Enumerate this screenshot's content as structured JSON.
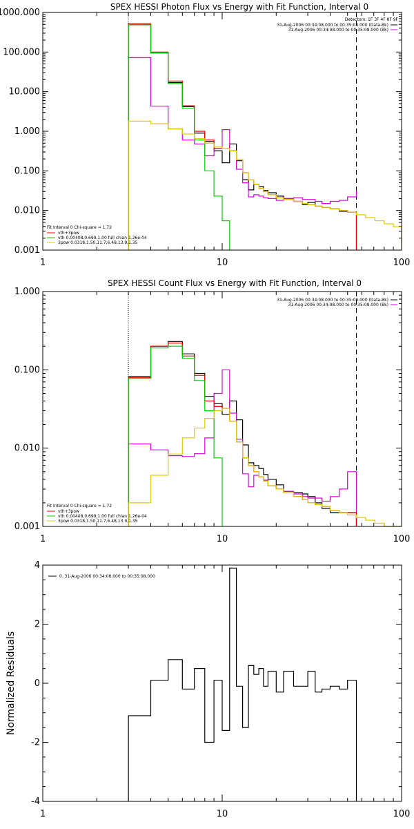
{
  "chart_data": [
    {
      "type": "line",
      "title": "SPEX HESSI Photon Flux vs Energy with Fit Function, Interval 0",
      "xscale": "log",
      "yscale": "log",
      "xlim": [
        1,
        100
      ],
      "ylim": [
        0.001,
        1000
      ],
      "xticklabels": [
        "1",
        "10",
        "100"
      ],
      "yticks": [
        0.001,
        0.01,
        0.1,
        1,
        10,
        100,
        1000
      ],
      "yticklabels": [
        "0.001",
        "0.010",
        "0.100",
        "1.000",
        "10.000",
        "100.000",
        "1000.000"
      ],
      "vlines": [
        {
          "x": 3,
          "style": "dotted"
        },
        {
          "x": 56,
          "style": "dashed"
        }
      ],
      "legend_tr": [
        "Detectors: 1F 3F 4F 8F 9F",
        "31-Aug-2006 00:34:08.000 to 00:35:08.000 (Data-Bk)",
        "31-Aug-2006 00:34:08.000 to 00:35:08.000 (Bk)"
      ],
      "legend_bl": [
        "Fit Interval 0   Chi-square = 1.72",
        "vth+3pow",
        "vth 0.00408,0.699,1.00  full chian 1.26e-04",
        "3pow 0.0318,1.50,11.7,6.48,13.9,1.35"
      ],
      "series": [
        {
          "name": "Data-Bk",
          "color": "#000000",
          "edges": [
            3,
            4,
            5,
            6,
            7,
            8,
            9,
            10,
            11,
            12,
            13,
            14,
            15,
            16,
            17,
            18,
            20,
            22,
            25,
            28,
            30,
            33,
            36,
            40,
            45,
            50,
            56
          ],
          "values": [
            490,
            95,
            17,
            4.2,
            0.9,
            0.55,
            0.32,
            0.16,
            0.48,
            0.18,
            0.06,
            0.033,
            0.046,
            0.04,
            0.032,
            0.028,
            0.023,
            0.02,
            0.017,
            0.014,
            0.016,
            0.013,
            0.012,
            0.011,
            0.0095,
            0.009
          ]
        },
        {
          "name": "Bk",
          "color": "#dd00dd",
          "edges": [
            3,
            4,
            5,
            6,
            7,
            8,
            9,
            10,
            11,
            12,
            13,
            14,
            15,
            16,
            17,
            18,
            20,
            22,
            25,
            28,
            30,
            33,
            36,
            40,
            45,
            50,
            56
          ],
          "values": [
            72,
            4.3,
            1.15,
            0.6,
            0.48,
            0.24,
            0.36,
            1.1,
            0.32,
            0.11,
            0.05,
            0.022,
            0.025,
            0.023,
            0.021,
            0.02,
            0.018,
            0.02,
            0.021,
            0.019,
            0.019,
            0.017,
            0.015,
            0.017,
            0.018,
            0.022,
            0.032
          ]
        },
        {
          "name": "vth+3pow",
          "color": "#ee0000",
          "edges": [
            3,
            4,
            5,
            6,
            7,
            8,
            9,
            10,
            11,
            12,
            13,
            14,
            15,
            16,
            17,
            18,
            20,
            22,
            25,
            28,
            30,
            33,
            36,
            40,
            45,
            50,
            56
          ],
          "values": [
            520,
            100,
            18.5,
            4.4,
            1.0,
            0.6,
            0.36,
            0.36,
            0.32,
            0.19,
            0.09,
            0.06,
            0.046,
            0.036,
            0.03,
            0.025,
            0.021,
            0.019,
            0.017,
            0.015,
            0.014,
            0.013,
            0.012,
            0.011,
            0.01,
            0.009
          ]
        },
        {
          "name": "vth",
          "color": "#00cc00",
          "edges": [
            3,
            4,
            5,
            6,
            7,
            8,
            9,
            10,
            11
          ],
          "values": [
            500,
            95,
            16,
            3.8,
            0.6,
            0.1,
            0.023,
            0.0055
          ]
        },
        {
          "name": "3pow",
          "color": "#ddcc00",
          "edges": [
            3,
            4,
            5,
            6,
            7,
            8,
            9,
            10,
            11,
            12,
            13,
            14,
            15,
            16,
            17,
            18,
            20,
            22,
            25,
            28,
            30,
            33,
            36,
            40,
            45,
            50,
            56,
            63,
            71,
            80,
            90,
            100
          ],
          "values": [
            1.8,
            1.55,
            1.15,
            0.85,
            0.65,
            0.5,
            0.4,
            0.36,
            0.32,
            0.19,
            0.09,
            0.06,
            0.046,
            0.036,
            0.03,
            0.025,
            0.021,
            0.019,
            0.017,
            0.015,
            0.014,
            0.013,
            0.012,
            0.011,
            0.01,
            0.009,
            0.0078,
            0.0066,
            0.0055,
            0.0046,
            0.0039
          ]
        }
      ]
    },
    {
      "type": "line",
      "title": "SPEX HESSI Count Flux vs Energy with Fit Function, Interval 0",
      "xscale": "log",
      "yscale": "log",
      "xlim": [
        1,
        100
      ],
      "ylim": [
        0.001,
        1
      ],
      "xticklabels": [
        "1",
        "10",
        "100"
      ],
      "yticks": [
        0.001,
        0.01,
        0.1,
        1
      ],
      "yticklabels": [
        "0.001",
        "0.010",
        "0.100",
        "1.000"
      ],
      "vlines": [
        {
          "x": 3,
          "style": "dotted"
        },
        {
          "x": 56,
          "style": "dashed"
        }
      ],
      "legend_tr": [
        "31-Aug-2006 00:34:08.000 to 00:35:08.000 (Data-Bk)",
        "31-Aug-2006 00:34:08.000 to 00:35:08.000 (Bk)"
      ],
      "legend_bl": [
        "Fit Interval 0   Chi-square = 1.72",
        "vth+3pow",
        "vth 0.00408,0.699,1.00  full chian 1.26e-04",
        "3pow 0.0318,1.50,11.7,6.48,13.9,1.35"
      ],
      "series": [
        {
          "name": "Data-Bk",
          "color": "#000000",
          "edges": [
            3,
            4,
            5,
            6,
            7,
            8,
            9,
            10,
            11,
            12,
            13,
            14,
            15,
            16,
            17,
            18,
            20,
            22,
            25,
            28,
            30,
            33,
            36,
            40,
            45,
            50,
            56
          ],
          "values": [
            0.082,
            0.2,
            0.23,
            0.16,
            0.09,
            0.046,
            0.037,
            0.027,
            0.04,
            0.023,
            0.011,
            0.0065,
            0.006,
            0.0055,
            0.0046,
            0.004,
            0.0034,
            0.0028,
            0.0027,
            0.0026,
            0.0024,
            0.002,
            0.0017,
            0.0015,
            0.0015,
            0.0015
          ]
        },
        {
          "name": "Bk",
          "color": "#dd00dd",
          "edges": [
            3,
            4,
            5,
            6,
            7,
            8,
            9,
            10,
            11,
            12,
            13,
            14,
            15,
            16,
            17,
            18,
            20,
            22,
            25,
            28,
            30,
            33,
            36,
            40,
            45,
            50,
            56
          ],
          "values": [
            0.0113,
            0.0095,
            0.008,
            0.0078,
            0.0085,
            0.0135,
            0.05,
            0.1,
            0.028,
            0.013,
            0.0047,
            0.0032,
            0.0045,
            0.0043,
            0.0039,
            0.0033,
            0.003,
            0.0028,
            0.0026,
            0.0024,
            0.0023,
            0.0023,
            0.0021,
            0.0024,
            0.003,
            0.005
          ]
        },
        {
          "name": "vth+3pow",
          "color": "#ee0000",
          "edges": [
            3,
            4,
            5,
            6,
            7,
            8,
            9,
            10,
            11,
            12,
            13,
            14,
            15,
            16,
            17,
            18,
            20,
            22,
            25,
            28,
            30,
            33,
            36,
            40,
            45,
            50,
            56
          ],
          "values": [
            0.08,
            0.2,
            0.22,
            0.15,
            0.085,
            0.04,
            0.034,
            0.032,
            0.022,
            0.012,
            0.0075,
            0.006,
            0.005,
            0.0043,
            0.0038,
            0.0033,
            0.003,
            0.0027,
            0.0024,
            0.0022,
            0.002,
            0.0019,
            0.0018,
            0.0016,
            0.0015,
            0.0015
          ]
        },
        {
          "name": "vth",
          "color": "#00cc00",
          "edges": [
            3,
            4,
            5,
            6,
            7,
            8,
            9,
            10
          ],
          "values": [
            0.078,
            0.19,
            0.2,
            0.14,
            0.073,
            0.03,
            0.0075
          ]
        },
        {
          "name": "3pow",
          "color": "#ddcc00",
          "edges": [
            3,
            4,
            5,
            6,
            7,
            8,
            9,
            10,
            11,
            12,
            13,
            14,
            15,
            16,
            17,
            18,
            20,
            22,
            25,
            28,
            30,
            33,
            36,
            40,
            45,
            50,
            56,
            63,
            71,
            80,
            90,
            100
          ],
          "values": [
            0.002,
            0.0045,
            0.0084,
            0.0135,
            0.018,
            0.024,
            0.03,
            0.032,
            0.022,
            0.012,
            0.0075,
            0.006,
            0.005,
            0.0043,
            0.0038,
            0.0033,
            0.003,
            0.0027,
            0.0024,
            0.0022,
            0.002,
            0.0019,
            0.0018,
            0.0016,
            0.0015,
            0.0014,
            0.0013,
            0.0012,
            0.0011,
            0.001,
            0.001
          ]
        }
      ]
    },
    {
      "type": "line",
      "xscale": "log",
      "yscale": "linear",
      "xlim": [
        1,
        100
      ],
      "ylim": [
        -4,
        4
      ],
      "xticklabels": [
        "1",
        "10",
        "100"
      ],
      "yticks": [
        -4,
        -2,
        0,
        2,
        4
      ],
      "yticklabels": [
        "-4",
        "-2",
        "0",
        "2",
        "4"
      ],
      "ylabel": "Normalized Residuals",
      "legend_tl": [
        "0. 31-Aug-2006 00:34:08.000 to 00:35:08.000"
      ],
      "series": [
        {
          "color": "#000000",
          "edges": [
            3,
            4,
            5,
            6,
            7,
            8,
            9,
            10,
            11,
            12,
            13,
            14,
            15,
            16,
            17,
            18,
            20,
            22,
            25,
            28,
            30,
            33,
            36,
            40,
            45,
            50,
            56
          ],
          "values": [
            -1.1,
            0.1,
            0.8,
            -0.2,
            0.5,
            -2.0,
            0.1,
            -1.6,
            3.9,
            -0.1,
            -1.5,
            0.6,
            0.3,
            0.5,
            -0.1,
            0.4,
            -0.3,
            0.4,
            -0.1,
            -0.1,
            0.4,
            -0.3,
            -0.2,
            -0.1,
            -0.2,
            0.1
          ]
        }
      ]
    }
  ]
}
